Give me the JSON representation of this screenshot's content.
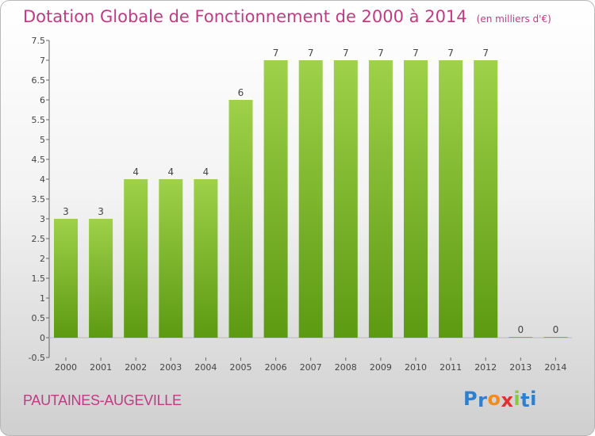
{
  "title": "Dotation Globale de Fonctionnement de 2000 à 2014",
  "unit_note": "(en milliers d'€)",
  "town": "PAUTAINES-AUGEVILLE",
  "logo": {
    "letters": [
      "P",
      "r",
      "o",
      "x",
      "i",
      "t",
      "i"
    ],
    "colors": [
      "#2f7fd0",
      "#2f7fd0",
      "#f08c1e",
      "#e03030",
      "#8dc63f",
      "#2f7fd0",
      "#2f7fd0"
    ]
  },
  "colors": {
    "bar_top": "#9fd14a",
    "bar_bottom": "#5c9a12",
    "title": "#c23a83"
  },
  "chart_data": {
    "type": "bar",
    "categories": [
      "2000",
      "2001",
      "2002",
      "2003",
      "2004",
      "2005",
      "2006",
      "2007",
      "2008",
      "2009",
      "2010",
      "2011",
      "2012",
      "2013",
      "2014"
    ],
    "values": [
      3,
      3,
      4,
      4,
      4,
      6,
      7,
      7,
      7,
      7,
      7,
      7,
      7,
      0,
      0
    ],
    "data_labels": [
      "3",
      "3",
      "4",
      "4",
      "4",
      "6",
      "7",
      "7",
      "7",
      "7",
      "7",
      "7",
      "7",
      "0",
      "0"
    ],
    "y_ticks": [
      "-0.5",
      "0",
      "0.5",
      "1",
      "1.5",
      "2",
      "2.5",
      "3",
      "3.5",
      "4",
      "4.5",
      "5",
      "5.5",
      "6",
      "6.5",
      "7",
      "7.5"
    ],
    "ylim": [
      -0.5,
      7.5
    ],
    "grid": false
  }
}
